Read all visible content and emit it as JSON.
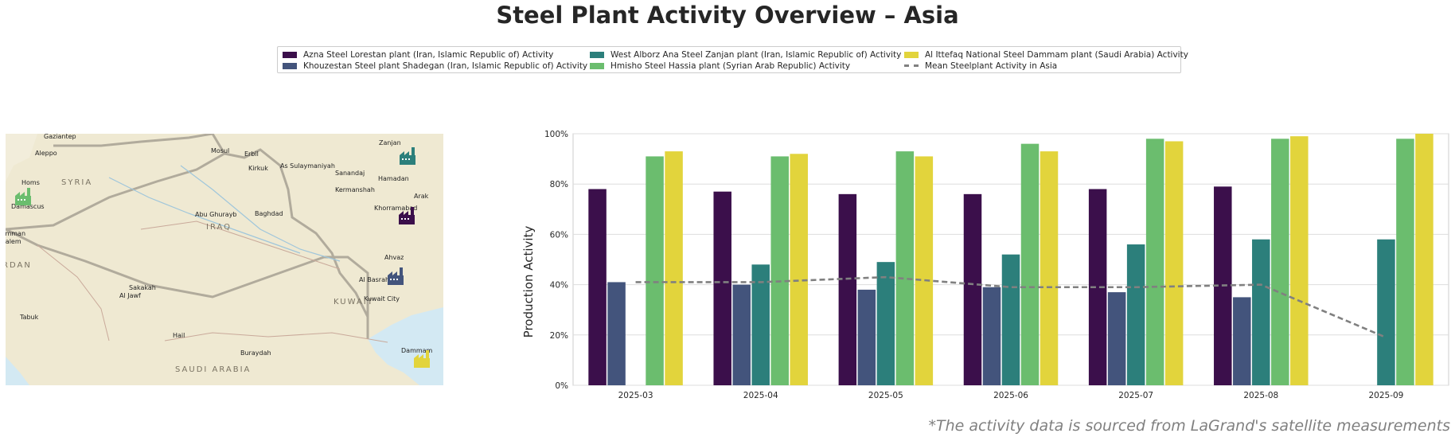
{
  "title": "Steel Plant Activity Overview – Asia",
  "footnote": "*The activity data is sourced from LaGrand's satellite measurements",
  "legend": [
    {
      "label": "Azna Steel Lorestan plant (Iran, Islamic Republic of) Activity",
      "color": "#3b0f4b",
      "kind": "bar"
    },
    {
      "label": "Khouzestan Steel plant Shadegan (Iran, Islamic Republic of) Activity",
      "color": "#43547c",
      "kind": "bar"
    },
    {
      "label": "West Alborz Ana Steel Zanjan plant (Iran, Islamic Republic of) Activity",
      "color": "#2c7f7b",
      "kind": "bar"
    },
    {
      "label": "Hmisho Steel Hassia plant (Syrian Arab Republic) Activity",
      "color": "#6bbd6e",
      "kind": "bar"
    },
    {
      "label": "Al Ittefaq National Steel Dammam plant (Saudi Arabia) Activity",
      "color": "#e2d43c",
      "kind": "bar"
    },
    {
      "label": "Mean Steelplant Activity in Asia",
      "color": "#808080",
      "kind": "dash"
    }
  ],
  "map": {
    "places": [
      "Gaziantep",
      "Aleppo",
      "Mosul",
      "Erbil",
      "Kirkuk",
      "As Sulaymaniyah",
      "Zanjan",
      "Sanandaj",
      "Hamadan",
      "Kermanshah",
      "Arak",
      "Khorramabad",
      "Homs",
      "Damascus",
      "Abu Ghurayb",
      "Baghdad",
      "Ahvaz",
      "Al Basrah",
      "Kuwait City",
      "Amman",
      "Jerusalem",
      "Sakakah",
      "Al Jawf",
      "Tabuk",
      "Hail",
      "Buraydah",
      "Dammam"
    ],
    "countries": [
      "SYRIA",
      "IRAQ",
      "KUWAIT",
      "RDAN",
      "SAUDI ARABIA"
    ],
    "markers": [
      {
        "plant": "Azna Steel Lorestan",
        "icon": "factory-icon",
        "color": "#3b0f4b"
      },
      {
        "plant": "Khouzestan Steel Shadegan",
        "icon": "factory-icon",
        "color": "#43547c"
      },
      {
        "plant": "West Alborz Ana Steel Zanjan",
        "icon": "factory-icon",
        "color": "#2c7f7b"
      },
      {
        "plant": "Hmisho Steel Hassia",
        "icon": "factory-icon",
        "color": "#6bbd6e"
      },
      {
        "plant": "Al Ittefaq National Steel Dammam",
        "icon": "factory-icon",
        "color": "#e2d43c"
      }
    ]
  },
  "chart_data": {
    "type": "bar",
    "title": "",
    "xlabel": "",
    "ylabel": "Production Activity",
    "categories": [
      "2025-03",
      "2025-04",
      "2025-05",
      "2025-06",
      "2025-07",
      "2025-08",
      "2025-09"
    ],
    "ylim": [
      0,
      100
    ],
    "yticks": [
      0,
      20,
      40,
      60,
      80,
      100
    ],
    "ytick_labels": [
      "0%",
      "20%",
      "40%",
      "60%",
      "80%",
      "100%"
    ],
    "grid": true,
    "series": [
      {
        "name": "Azna Steel Lorestan plant (Iran, Islamic Republic of) Activity",
        "color": "#3b0f4b",
        "values": [
          78,
          77,
          76,
          76,
          78,
          79,
          null
        ]
      },
      {
        "name": "Khouzestan Steel plant Shadegan (Iran, Islamic Republic of) Activity",
        "color": "#43547c",
        "values": [
          41,
          40,
          38,
          39,
          37,
          35,
          null
        ]
      },
      {
        "name": "West Alborz Ana Steel Zanjan plant (Iran, Islamic Republic of) Activity",
        "color": "#2c7f7b",
        "values": [
          null,
          48,
          49,
          52,
          56,
          58,
          58
        ]
      },
      {
        "name": "Hmisho Steel Hassia plant (Syrian Arab Republic) Activity",
        "color": "#6bbd6e",
        "values": [
          91,
          91,
          93,
          96,
          98,
          98,
          98
        ]
      },
      {
        "name": "Al Ittefaq National Steel Dammam plant (Saudi Arabia) Activity",
        "color": "#e2d43c",
        "values": [
          93,
          92,
          91,
          93,
          97,
          99,
          100
        ]
      }
    ],
    "mean_line": {
      "name": "Mean Steelplant Activity in Asia",
      "color": "#808080",
      "values": [
        41,
        41,
        43,
        39,
        39,
        40,
        19
      ]
    }
  }
}
